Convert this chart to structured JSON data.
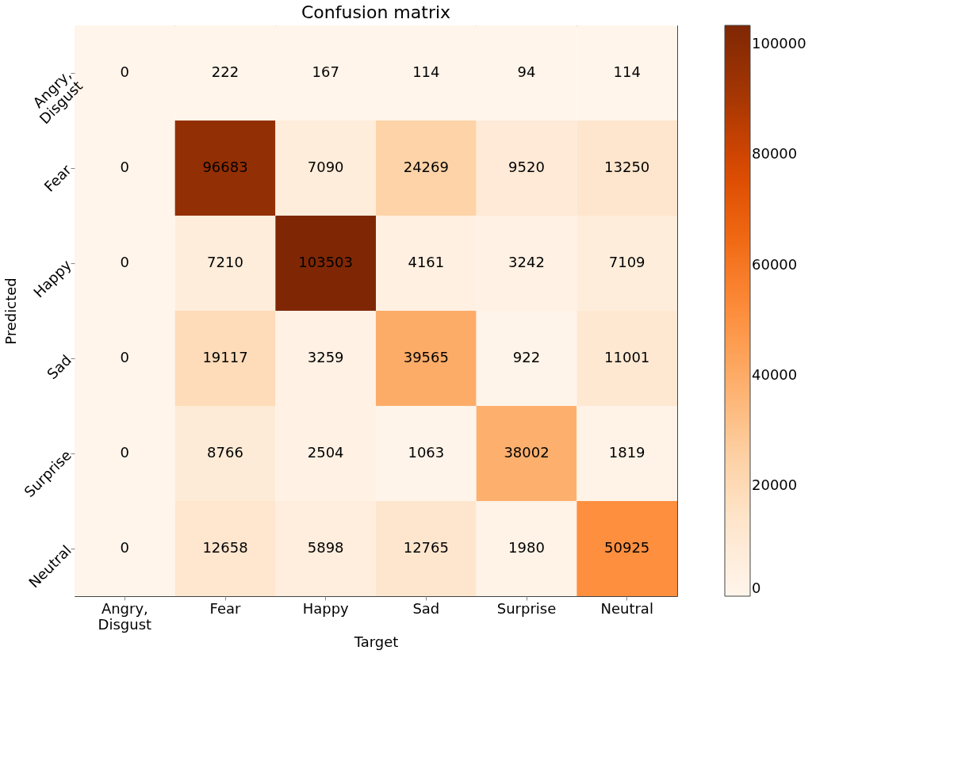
{
  "chart_data": {
    "type": "heatmap",
    "title": "Confusion matrix",
    "xlabel": "Target",
    "ylabel": "Predicted",
    "categories": [
      "Angry, Disgust",
      "Fear",
      "Happy",
      "Sad",
      "Surprise",
      "Neutral"
    ],
    "y_categories": [
      "Angry, Disgust",
      "Fear",
      "Happy",
      "Sad",
      "Surprise",
      "Neutral"
    ],
    "cells": [
      [
        0,
        222,
        167,
        114,
        94,
        114
      ],
      [
        0,
        96683,
        7090,
        24269,
        9520,
        13250
      ],
      [
        0,
        7210,
        103503,
        4161,
        3242,
        7109
      ],
      [
        0,
        19117,
        3259,
        39565,
        922,
        11001
      ],
      [
        0,
        8766,
        2504,
        1063,
        38002,
        1819
      ],
      [
        0,
        12658,
        5898,
        12765,
        1980,
        50925
      ]
    ],
    "clim": [
      0,
      103503
    ],
    "cticks": [
      0,
      20000,
      40000,
      60000,
      80000,
      100000
    ],
    "data_labels": true
  }
}
